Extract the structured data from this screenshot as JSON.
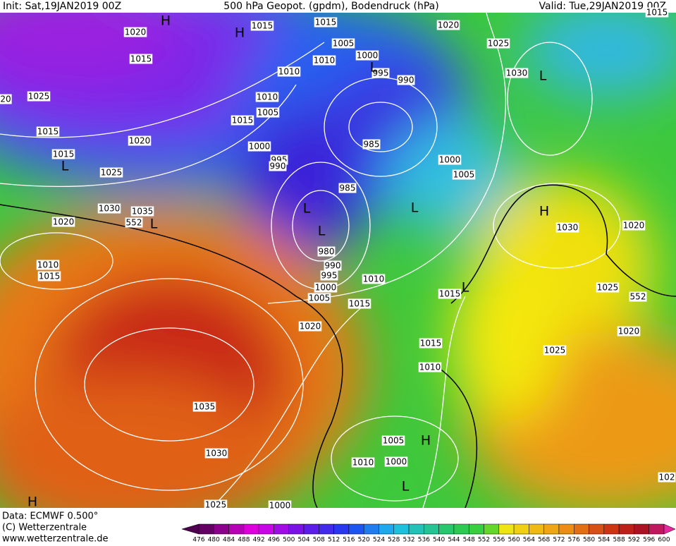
{
  "header": {
    "init": "Init: Sat,19JAN2019 00Z",
    "title": "500 hPa Geopot. (gpdm), Bodendruck (hPa)",
    "valid": "Valid: Tue,29JAN2019 00Z"
  },
  "isobar_labels": [
    1020,
    1015,
    1025,
    20,
    1015,
    1020,
    1015,
    1025,
    1030,
    1035,
    1020,
    552,
    1010,
    1015,
    1015,
    1015,
    1005,
    1010,
    1010,
    1000,
    995,
    990,
    1010,
    1005,
    1015,
    1000,
    995,
    990,
    985,
    985,
    980,
    990,
    995,
    1000,
    1005,
    1015,
    1010,
    1000,
    1005,
    1020,
    1025,
    1030,
    1030,
    1020,
    1025,
    552,
    1020,
    1025,
    1015,
    1015,
    1010,
    1020,
    1035,
    1030,
    1005,
    1000,
    1010,
    1025,
    1000,
    102,
    1015
  ],
  "pressure_centers": [
    "H",
    "H",
    "L",
    "L",
    "L",
    "L",
    "L",
    "L",
    "L",
    "H",
    "L",
    "H",
    "L",
    "H"
  ],
  "footer": {
    "data": "Data: ECMWF  0.500°",
    "copyright": "(C) Wetterzentrale",
    "url": "www.wetterzentrale.de"
  },
  "colorbar": {
    "labels": [
      476,
      480,
      484,
      488,
      492,
      496,
      500,
      504,
      508,
      512,
      516,
      520,
      524,
      528,
      532,
      536,
      540,
      544,
      548,
      552,
      556,
      560,
      564,
      568,
      572,
      576,
      580,
      584,
      588,
      592,
      596,
      600
    ]
  }
}
